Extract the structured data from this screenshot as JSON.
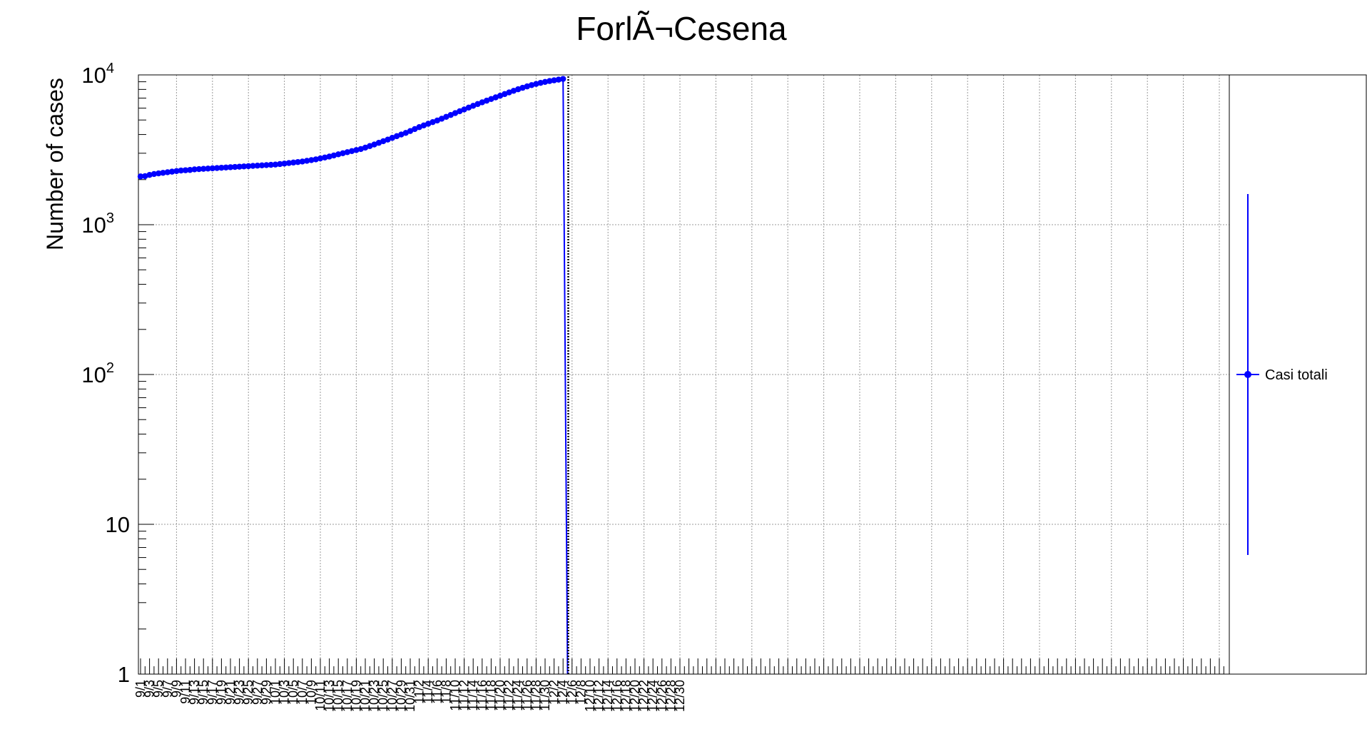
{
  "chart_data": {
    "type": "line",
    "title": "ForlÃ¬Cesena",
    "ylabel": "Number of cases",
    "xlabel": "",
    "yscale": "log",
    "ylim": [
      1,
      10000
    ],
    "grid": true,
    "legend": {
      "entries": [
        "Casi totali"
      ],
      "placement": "right"
    },
    "y_tick_labels": [
      {
        "value": 1,
        "base": "1",
        "exp": ""
      },
      {
        "value": 10,
        "base": "10",
        "exp": ""
      },
      {
        "value": 100,
        "base": "10",
        "exp": "2"
      },
      {
        "value": 1000,
        "base": "10",
        "exp": "3"
      },
      {
        "value": 10000,
        "base": "10",
        "exp": "4"
      }
    ],
    "x_tick_labels": [
      "9/1",
      "9/3",
      "9/5",
      "9/7",
      "9/9",
      "9/11",
      "9/13",
      "9/15",
      "9/17",
      "9/19",
      "9/21",
      "9/23",
      "9/25",
      "9/27",
      "9/29",
      "10/1",
      "10/3",
      "10/5",
      "10/7",
      "10/9",
      "10/11",
      "10/13",
      "10/15",
      "10/17",
      "10/19",
      "10/21",
      "10/23",
      "10/25",
      "10/27",
      "10/29",
      "10/31",
      "11/2",
      "11/4",
      "11/6",
      "11/8",
      "11/10",
      "11/12",
      "11/14",
      "11/16",
      "11/18",
      "11/20",
      "11/22",
      "11/24",
      "11/26",
      "11/28",
      "11/30",
      "12/2",
      "12/4",
      "12/6",
      "12/8",
      "12/10",
      "12/12",
      "12/14",
      "12/16",
      "12/18",
      "12/20",
      "12/22",
      "12/24",
      "12/26",
      "12/28",
      "12/30"
    ],
    "series": [
      {
        "name": "Casi totali",
        "color": "#0000ff",
        "x": [
          "9/1",
          "9/2",
          "9/3",
          "9/4",
          "9/5",
          "9/6",
          "9/7",
          "9/8",
          "9/9",
          "9/10",
          "9/11",
          "9/12",
          "9/13",
          "9/14",
          "9/15",
          "9/16",
          "9/17",
          "9/18",
          "9/19",
          "9/20",
          "9/21",
          "9/22",
          "9/23",
          "9/24",
          "9/25",
          "9/26",
          "9/27",
          "9/28",
          "9/29",
          "9/30",
          "10/1",
          "10/2",
          "10/3",
          "10/4",
          "10/5",
          "10/6",
          "10/7",
          "10/8",
          "10/9",
          "10/10",
          "10/11",
          "10/12",
          "10/13",
          "10/14",
          "10/15",
          "10/16",
          "10/17",
          "10/18",
          "10/19",
          "10/20",
          "10/21",
          "10/22",
          "10/23",
          "10/24",
          "10/25",
          "10/26",
          "10/27",
          "10/28",
          "10/29",
          "10/30",
          "10/31",
          "11/1",
          "11/2",
          "11/3",
          "11/4",
          "11/5",
          "11/6",
          "11/7",
          "11/8",
          "11/9",
          "11/10",
          "11/11",
          "11/12",
          "11/13",
          "11/14",
          "11/15",
          "11/16",
          "11/17",
          "11/18",
          "11/19",
          "11/20",
          "11/21",
          "11/22",
          "11/23",
          "11/24",
          "11/25",
          "11/26",
          "11/27",
          "11/28",
          "11/29",
          "11/30",
          "12/1",
          "12/2",
          "12/3",
          "12/4",
          "12/5"
        ],
        "values": [
          2100,
          2110,
          2150,
          2180,
          2200,
          2220,
          2240,
          2260,
          2280,
          2300,
          2310,
          2320,
          2340,
          2350,
          2360,
          2370,
          2380,
          2390,
          2400,
          2410,
          2420,
          2430,
          2440,
          2450,
          2460,
          2470,
          2480,
          2490,
          2500,
          2510,
          2520,
          2540,
          2560,
          2580,
          2600,
          2620,
          2640,
          2670,
          2700,
          2730,
          2770,
          2810,
          2850,
          2900,
          2950,
          3000,
          3050,
          3100,
          3150,
          3200,
          3270,
          3350,
          3430,
          3520,
          3610,
          3700,
          3800,
          3900,
          4000,
          4100,
          4220,
          4350,
          4480,
          4600,
          4720,
          4840,
          4960,
          5100,
          5250,
          5400,
          5560,
          5720,
          5880,
          6050,
          6220,
          6390,
          6560,
          6730,
          6900,
          7080,
          7260,
          7450,
          7640,
          7830,
          8020,
          8200,
          8380,
          8550,
          8700,
          8850,
          8980,
          9100,
          9200,
          9300,
          9400,
          1
        ]
      }
    ]
  }
}
